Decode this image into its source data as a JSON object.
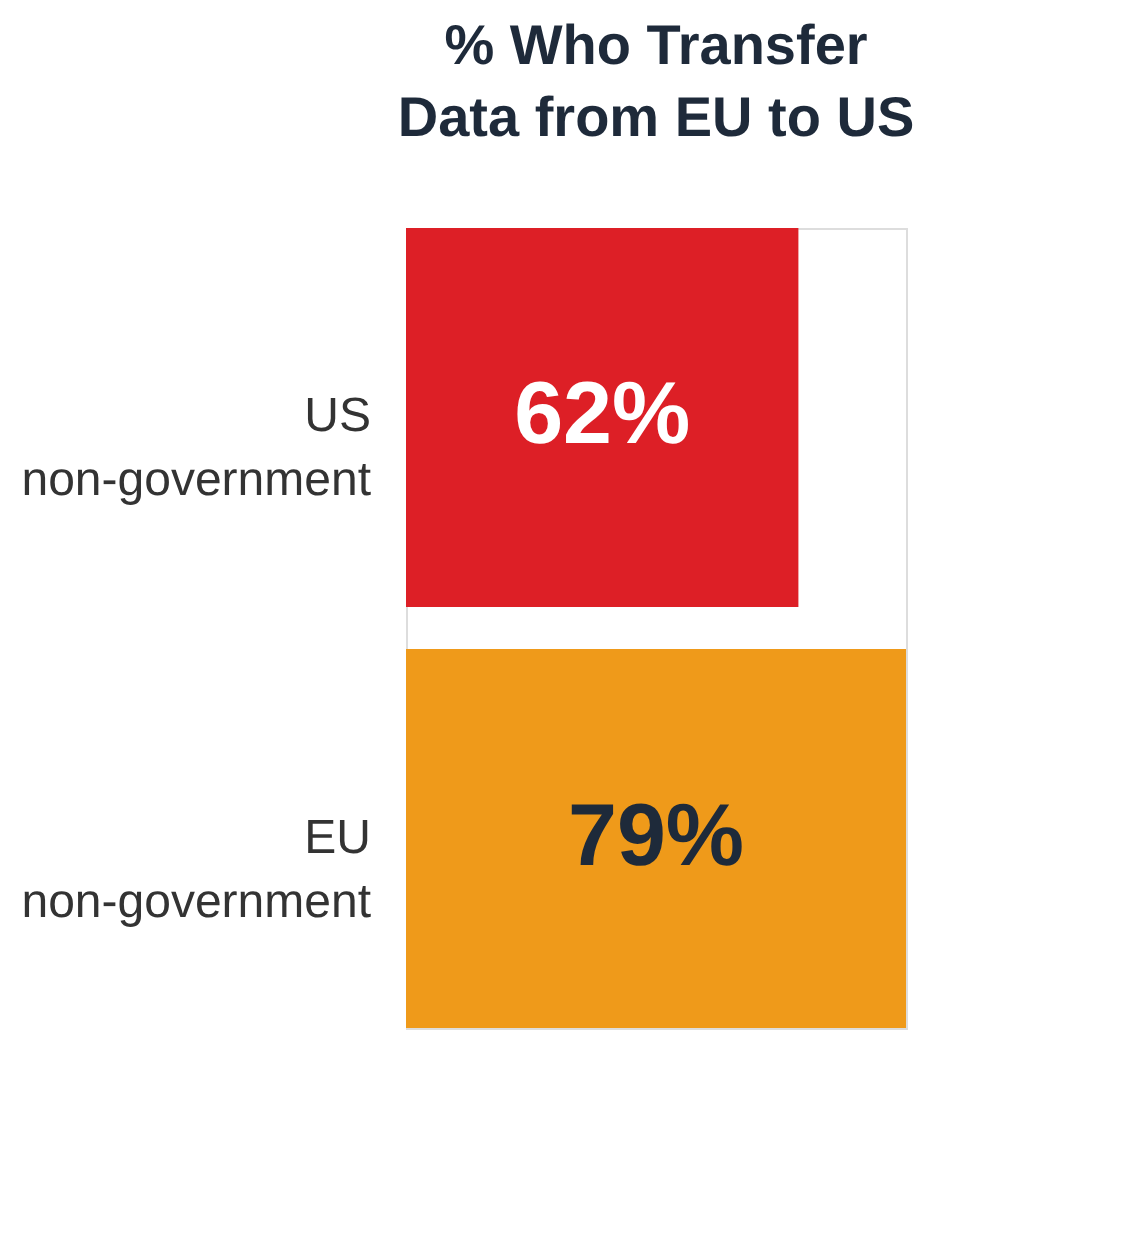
{
  "chart_data": {
    "type": "bar",
    "orientation": "horizontal",
    "title": "% Who Transfer Data from EU to US",
    "categories": [
      "US non-government",
      "EU non-government"
    ],
    "values": [
      62,
      79
    ],
    "colors": [
      "#dd1f26",
      "#ef9a1a"
    ],
    "value_labels": [
      "62%",
      "79%"
    ],
    "tick_labels": "y"
  }
}
